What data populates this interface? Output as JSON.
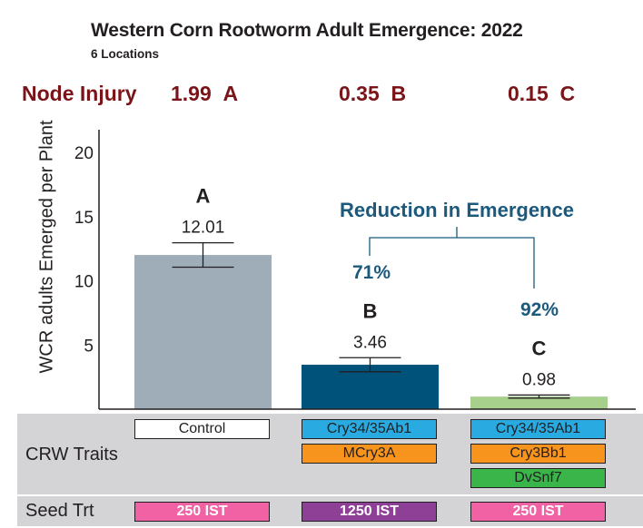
{
  "chart_data": {
    "type": "bar",
    "title": "Western Corn Rootworm Adult Emergence: 2022",
    "subtitle": "6 Locations",
    "ylabel": "WCR adults Emerged per Plant",
    "xlabel": "",
    "ylim": [
      0,
      20
    ],
    "yticks": [
      5,
      10,
      15,
      20
    ],
    "grid": false,
    "categories": [
      "Control",
      "Cry34/35Ab1 + MCry3A",
      "Cry34/35Ab1 + Cry3Bb1 + DvSnf7"
    ],
    "values": [
      12.01,
      3.46,
      0.98
    ],
    "value_labels": [
      "12.01",
      "3.46",
      "0.98"
    ],
    "error": [
      0.95,
      0.55,
      0.12
    ],
    "significance_letters": [
      "A",
      "B",
      "C"
    ],
    "bar_colors": [
      "#9fadb8",
      "#00527a",
      "#a8d08d"
    ],
    "node_injury": {
      "label": "Node Injury",
      "values": [
        "1.99",
        "0.35",
        "0.15"
      ],
      "letters": [
        "A",
        "B",
        "C"
      ]
    },
    "annotation": {
      "title": "Reduction in Emergence",
      "values": [
        "71%",
        "92%"
      ],
      "color": "#1b5a7d"
    }
  },
  "table": {
    "traits_label": "CRW Traits",
    "seed_label": "Seed Trt",
    "traits": [
      [
        {
          "text": "Control",
          "color": "#ffffff"
        }
      ],
      [
        {
          "text": "Cry34/35Ab1",
          "color": "#29abe2"
        },
        {
          "text": "MCry3A",
          "color": "#f7941d"
        }
      ],
      [
        {
          "text": "Cry34/35Ab1",
          "color": "#29abe2"
        },
        {
          "text": "Cry3Bb1",
          "color": "#f7941d"
        },
        {
          "text": "DvSnf7",
          "color": "#39b54a"
        }
      ]
    ],
    "seed": [
      {
        "text": "250 IST",
        "color": "#f062a4"
      },
      {
        "text": "1250 IST",
        "color": "#8e3f96"
      },
      {
        "text": "250 IST",
        "color": "#f062a4"
      }
    ]
  }
}
